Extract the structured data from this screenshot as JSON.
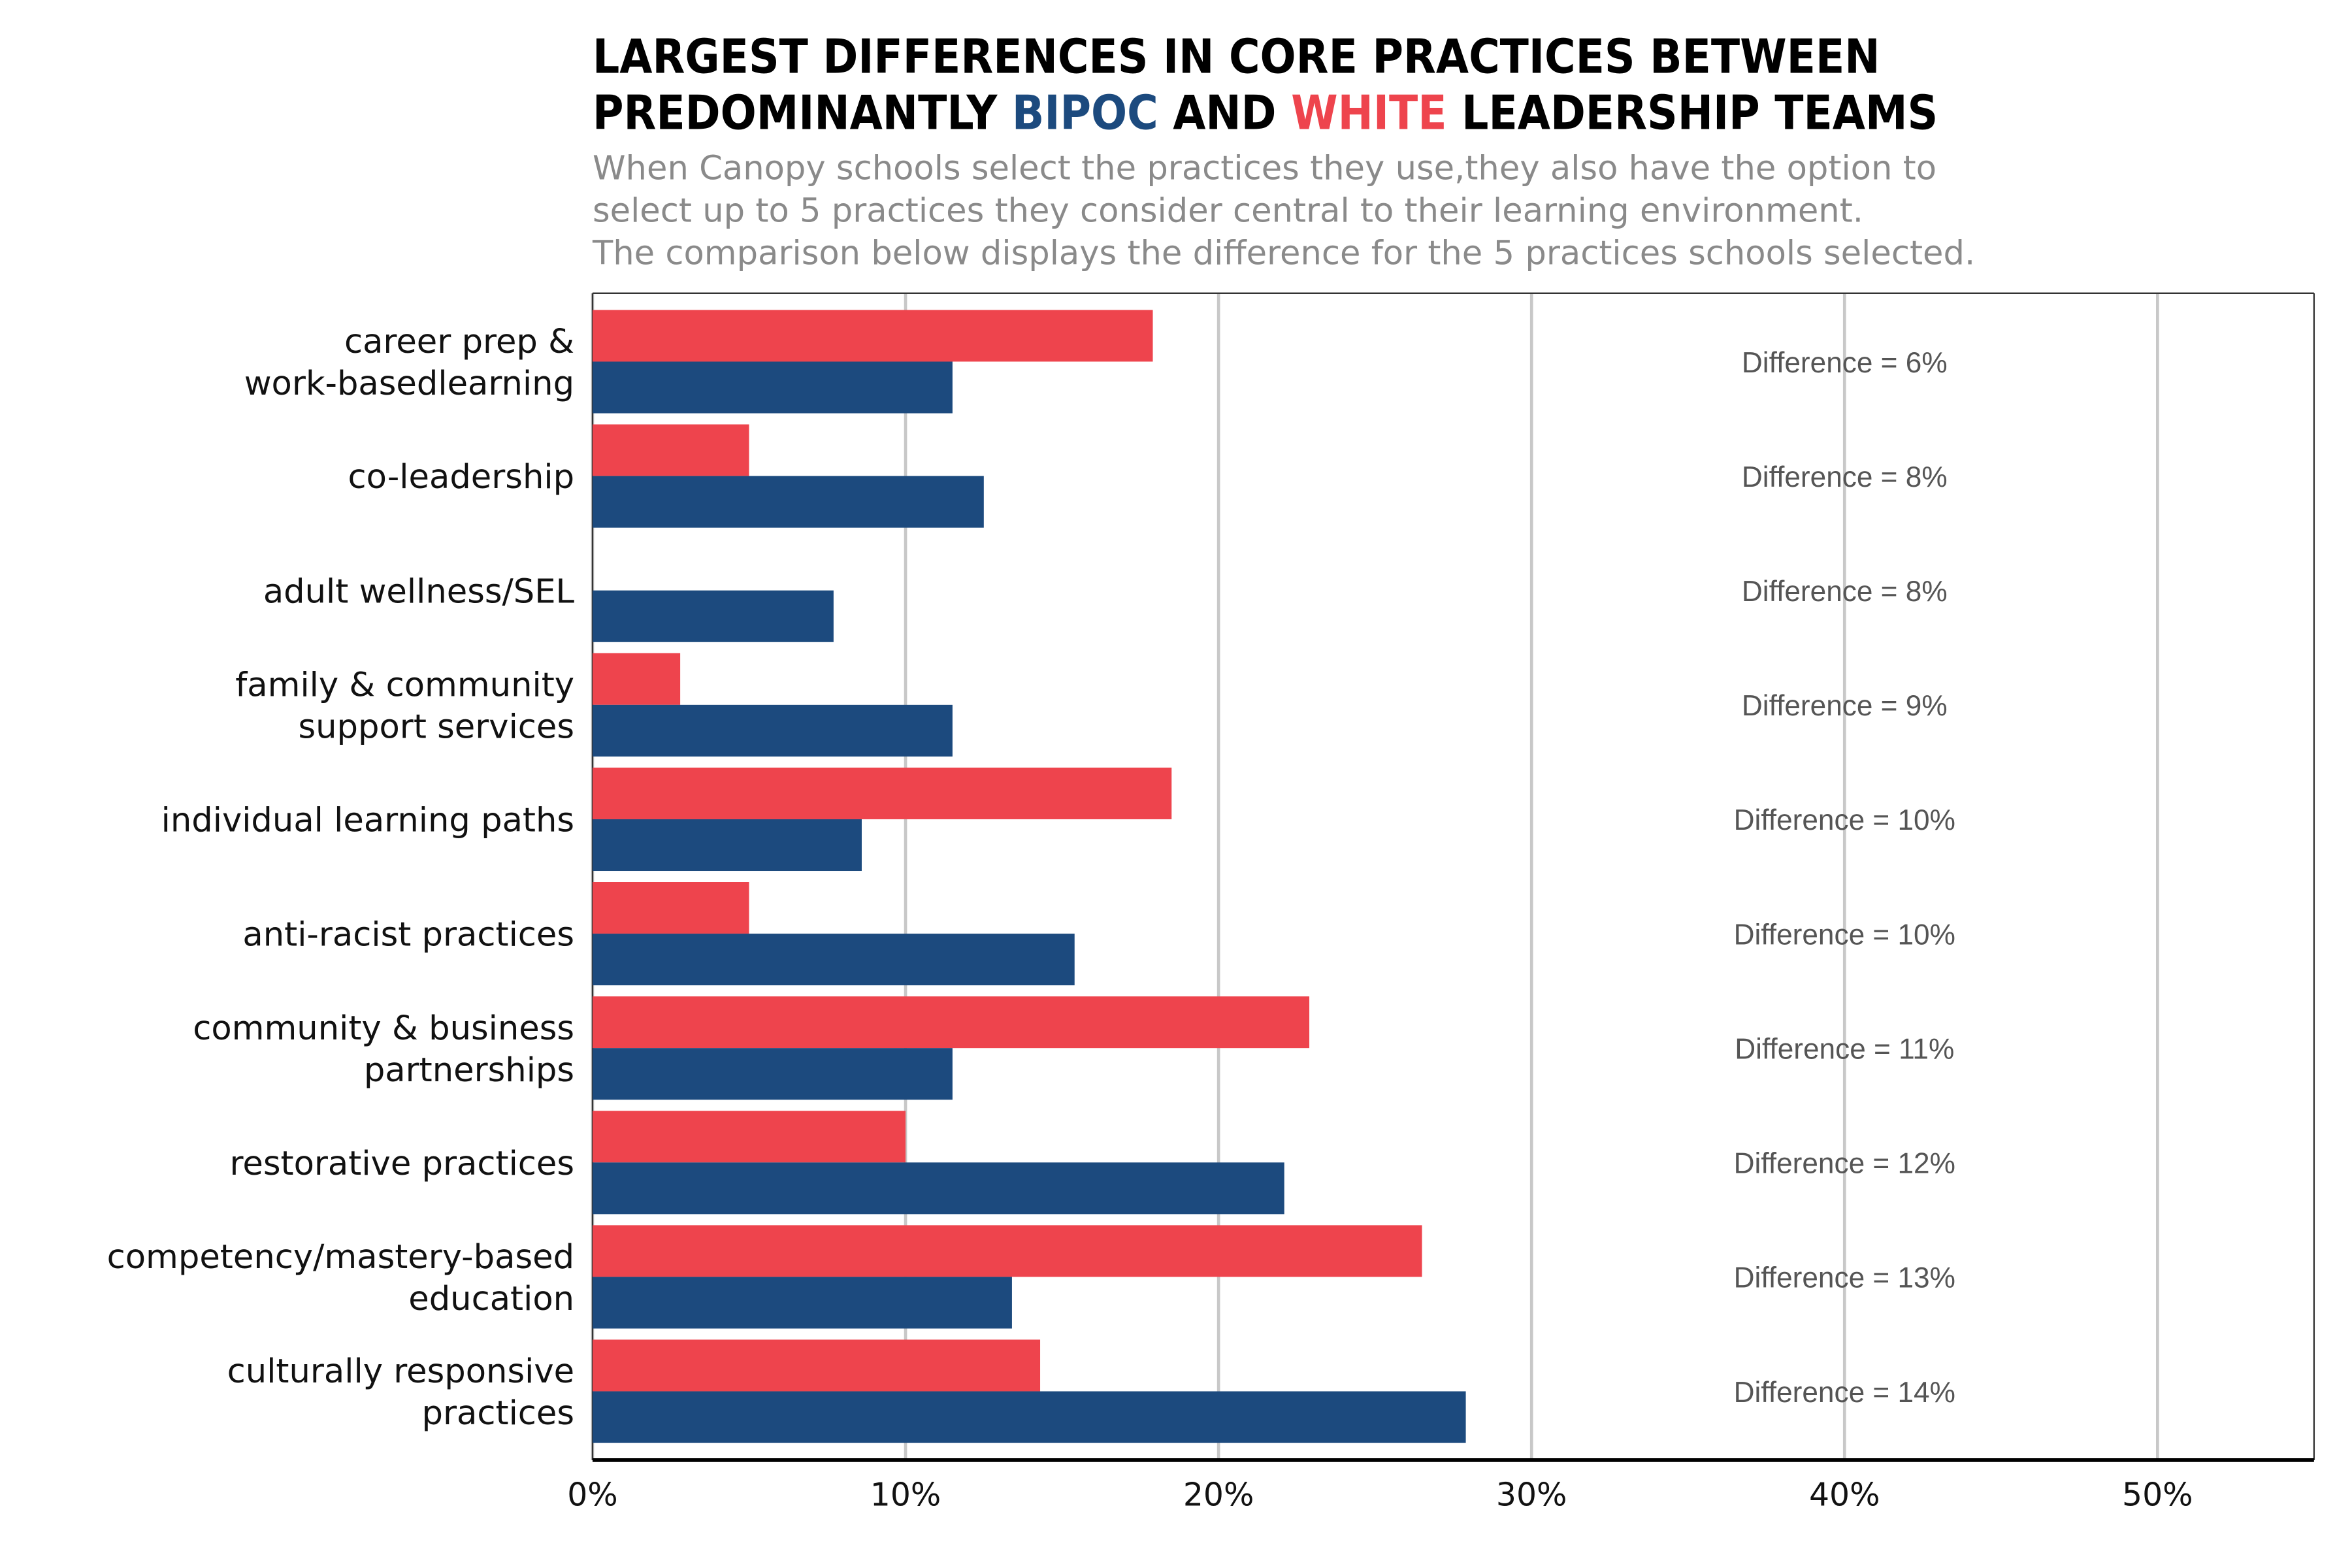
{
  "chart_data": {
    "type": "bar",
    "orientation": "horizontal",
    "title": {
      "line1": "LARGEST DIFFERENCES IN CORE PRACTICES BETWEEN",
      "line2_start": "PREDOMINANTLY",
      "line2_middle": "AND",
      "line2_end": "LEADERSHIP TEAMS"
    },
    "subtitle": [
      "When Canopy schools select the practices they use,they also have the option to",
      "select up to 5 practices they consider central to their learning environment.",
      "The comparison below displays the difference for the 5 practices schools selected."
    ],
    "categories": [
      [
        "career prep &",
        "work-basedlearning"
      ],
      [
        "co-leadership"
      ],
      [
        "adult wellness/SEL"
      ],
      [
        "family & community",
        "support services"
      ],
      [
        "individual learning paths"
      ],
      [
        "anti-racist practices"
      ],
      [
        "community & business",
        "partnerships"
      ],
      [
        "restorative practices"
      ],
      [
        "competency/mastery-based",
        "education"
      ],
      [
        "culturally responsive",
        "practices"
      ]
    ],
    "series": [
      {
        "name": "WHITE",
        "color": "#ee444d",
        "values": [
          17.9,
          5.0,
          0,
          2.8,
          18.5,
          5.0,
          22.9,
          10.0,
          26.5,
          14.3
        ]
      },
      {
        "name": "BIPOC",
        "color": "#1c4a7e",
        "values": [
          11.5,
          12.5,
          7.7,
          11.5,
          8.6,
          15.4,
          11.5,
          22.1,
          13.4,
          27.9
        ]
      }
    ],
    "annotations": [
      "Difference = 6%",
      "Difference = 8%",
      "Difference = 8%",
      "Difference = 9%",
      "Difference = 10%",
      "Difference = 10%",
      "Difference = 11%",
      "Difference = 12%",
      "Difference = 13%",
      "Difference = 14%"
    ],
    "xlim": [
      0,
      55
    ],
    "xticks": [
      {
        "value": 0,
        "label": "0%"
      },
      {
        "value": 10,
        "label": "10%"
      },
      {
        "value": 20,
        "label": "20%"
      },
      {
        "value": 30,
        "label": "30%"
      },
      {
        "value": 40,
        "label": "40%"
      },
      {
        "value": 50,
        "label": "50%"
      }
    ],
    "grid": true
  }
}
